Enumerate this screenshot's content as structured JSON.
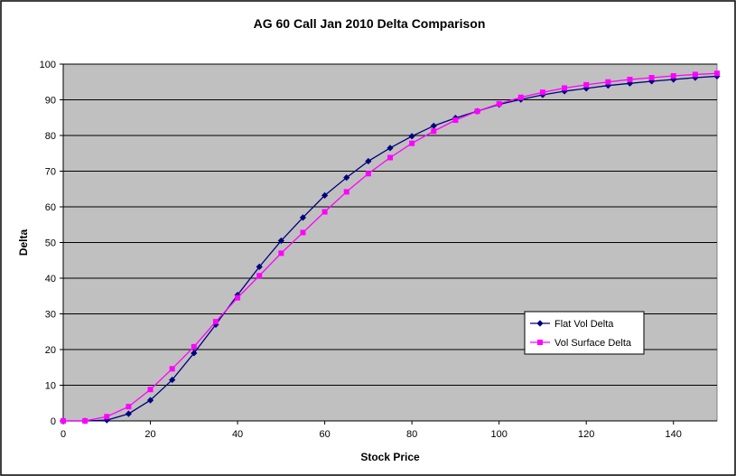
{
  "chart_data": {
    "type": "line",
    "title": "AG 60 Call Jan 2010 Delta Comparison",
    "xlabel": "Stock Price",
    "ylabel": "Delta",
    "xlim": [
      0,
      150
    ],
    "ylim": [
      0,
      100
    ],
    "x_ticks": [
      0,
      20,
      40,
      60,
      80,
      100,
      120,
      140
    ],
    "y_ticks": [
      0,
      10,
      20,
      30,
      40,
      50,
      60,
      70,
      80,
      90,
      100
    ],
    "grid": "horizontal",
    "plot_background": "#c0c0c0",
    "legend_position": "lower-right",
    "x": [
      0,
      5,
      10,
      15,
      20,
      25,
      30,
      35,
      40,
      45,
      50,
      55,
      60,
      65,
      70,
      75,
      80,
      85,
      90,
      95,
      100,
      105,
      110,
      115,
      120,
      125,
      130,
      135,
      140,
      145,
      150
    ],
    "series": [
      {
        "name": "Flat Vol Delta",
        "color": "#000080",
        "marker": "diamond",
        "values": [
          0,
          0,
          0.2,
          2,
          5.8,
          11.5,
          19,
          27,
          35.3,
          43.2,
          50.5,
          57,
          63.2,
          68.2,
          72.8,
          76.5,
          79.8,
          82.7,
          84.9,
          86.8,
          88.7,
          90.1,
          91.4,
          92.4,
          93.2,
          94,
          94.6,
          95.2,
          95.7,
          96.2,
          96.6
        ]
      },
      {
        "name": "Vol Surface Delta",
        "color": "#ff00ff",
        "marker": "square",
        "values": [
          0,
          0,
          1.2,
          4,
          8.8,
          14.6,
          20.8,
          27.8,
          34.5,
          40.7,
          47,
          52.8,
          58.6,
          64.2,
          69.3,
          73.8,
          77.8,
          81.2,
          84.3,
          86.8,
          88.9,
          90.7,
          92.1,
          93.3,
          94.2,
          95,
          95.7,
          96.2,
          96.7,
          97.1,
          97.4
        ]
      }
    ]
  }
}
